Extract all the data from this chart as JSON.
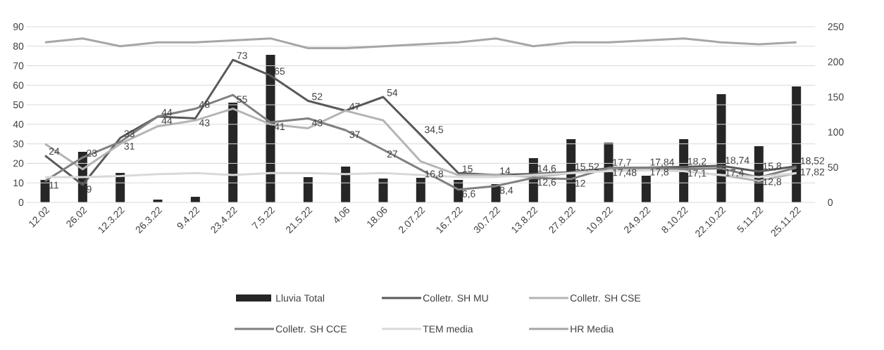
{
  "chart_data": {
    "type": "bar",
    "categories": [
      "12.02",
      "26.02",
      "12.3.22",
      "26.3.22",
      "9.4.22",
      "23.4.22",
      "7.5.22",
      "21.5.22",
      "4.06",
      "18.06",
      "2.07.22",
      "16.7.22",
      "30.7.22",
      "13.8.22",
      "27.8.22",
      "10.9.22",
      "24.9.22",
      "8.10.22",
      "22.10.22",
      "5.11.22",
      "25.11.22"
    ],
    "series": [
      {
        "name": "Lluvia Total",
        "axis": "y2",
        "color": "#262626",
        "values": [
          32,
          72,
          42,
          4,
          8,
          142,
          210,
          36,
          51,
          34,
          35,
          32,
          26,
          63,
          90,
          85,
          38,
          90,
          154,
          80,
          165
        ]
      },
      {
        "name": "Colletr. SH MU",
        "type": "line",
        "color": "#595959",
        "values": [
          24,
          9,
          33,
          44,
          43,
          73,
          65,
          52,
          47,
          54,
          34.5,
          15,
          14,
          14.6,
          15.52,
          17.48,
          17.84,
          18.2,
          18.74,
          15.8,
          18.52
        ],
        "value_labels": [
          "24",
          "9",
          "33",
          "44",
          "43",
          "73",
          "65",
          "52",
          "47",
          "54",
          "34,5",
          "15",
          "14",
          "14,6",
          "15,52",
          "17,48",
          "17,84",
          "18,2",
          "18,74",
          "15,8",
          "18,52"
        ]
      },
      {
        "name": "Colletr. SH CSE",
        "type": "line",
        "color": "#b4b4b4",
        "values": [
          30,
          17,
          30,
          39,
          42,
          48,
          40,
          38,
          47,
          42,
          21,
          14,
          14,
          13,
          15,
          17,
          17,
          16,
          14,
          11,
          15
        ]
      },
      {
        "name": "Colletr. SH CCE",
        "type": "line",
        "color": "#808080",
        "values": [
          11,
          23,
          31,
          44,
          48,
          55,
          41,
          43,
          37,
          27,
          16.8,
          6.6,
          8.4,
          12.6,
          12,
          17.7,
          17.8,
          17.1,
          17.4,
          12.8,
          17.82
        ],
        "value_labels": [
          "11",
          "23",
          "31",
          "44",
          "48",
          "55",
          "41",
          "43",
          "37",
          "27",
          "16,8",
          "6,6",
          "8,4",
          "12,6",
          "12",
          "17,7",
          "17,8",
          "17,1",
          "17,4",
          "12,8",
          "17,82"
        ]
      },
      {
        "name": "TEM media",
        "type": "line",
        "color": "#d9d9d9",
        "values": [
          13,
          13,
          13.5,
          14.5,
          15,
          14,
          15,
          15,
          14.5,
          15,
          14,
          13,
          13,
          14,
          15,
          16,
          16.5,
          16,
          14,
          13,
          15
        ]
      },
      {
        "name": "HR Media",
        "type": "line",
        "color": "#a6a6a6",
        "values": [
          82,
          84,
          80,
          82,
          82,
          83,
          84,
          79,
          79,
          80,
          81,
          82,
          84,
          80,
          82,
          82,
          83,
          84,
          82,
          81,
          82
        ]
      }
    ],
    "ylim": [
      0,
      90
    ],
    "yticks": [
      0,
      10,
      20,
      30,
      40,
      50,
      60,
      70,
      80,
      90
    ],
    "y2lim": [
      0,
      250
    ],
    "y2ticks": [
      0,
      50,
      100,
      150,
      200,
      250
    ],
    "grid": "y",
    "legend": "bottom"
  }
}
